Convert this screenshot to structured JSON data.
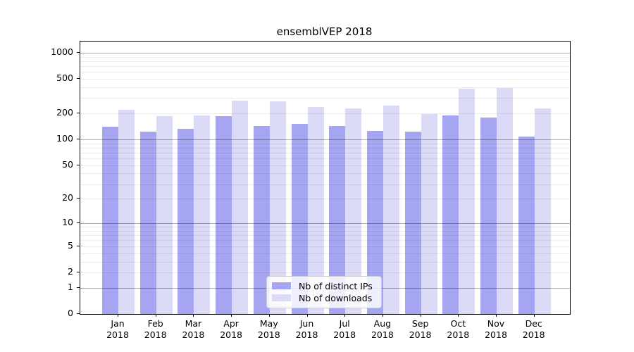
{
  "chart_data": {
    "type": "bar",
    "title": "ensemblVEP 2018",
    "categories": [
      "Jan",
      "Feb",
      "Mar",
      "Apr",
      "May",
      "Jun",
      "Jul",
      "Aug",
      "Sep",
      "Oct",
      "Nov",
      "Dec"
    ],
    "year": "2018",
    "series": [
      {
        "name": "Nb of distinct IPs",
        "color": "#a5a5f2",
        "values": [
          141,
          124,
          132,
          185,
          144,
          151,
          142,
          125,
          124,
          189,
          179,
          107
        ]
      },
      {
        "name": "Nb of downloads",
        "color": "#dbdbf8",
        "values": [
          220,
          185,
          188,
          280,
          275,
          237,
          227,
          245,
          197,
          385,
          390,
          230
        ]
      }
    ],
    "y_ticks": [
      0,
      1,
      2,
      5,
      10,
      20,
      50,
      100,
      200,
      500,
      1000
    ],
    "y_scale": "log10(value+1)",
    "ylim": [
      0,
      1370
    ],
    "xlabel": "",
    "ylabel": "",
    "grid": true,
    "legend_position": "lower center",
    "colors": {
      "major_gridline": "#b3b3b3",
      "minor_gridline": "#e9e9e9",
      "axis": "#000000",
      "legend_border": "#cccccc"
    }
  }
}
